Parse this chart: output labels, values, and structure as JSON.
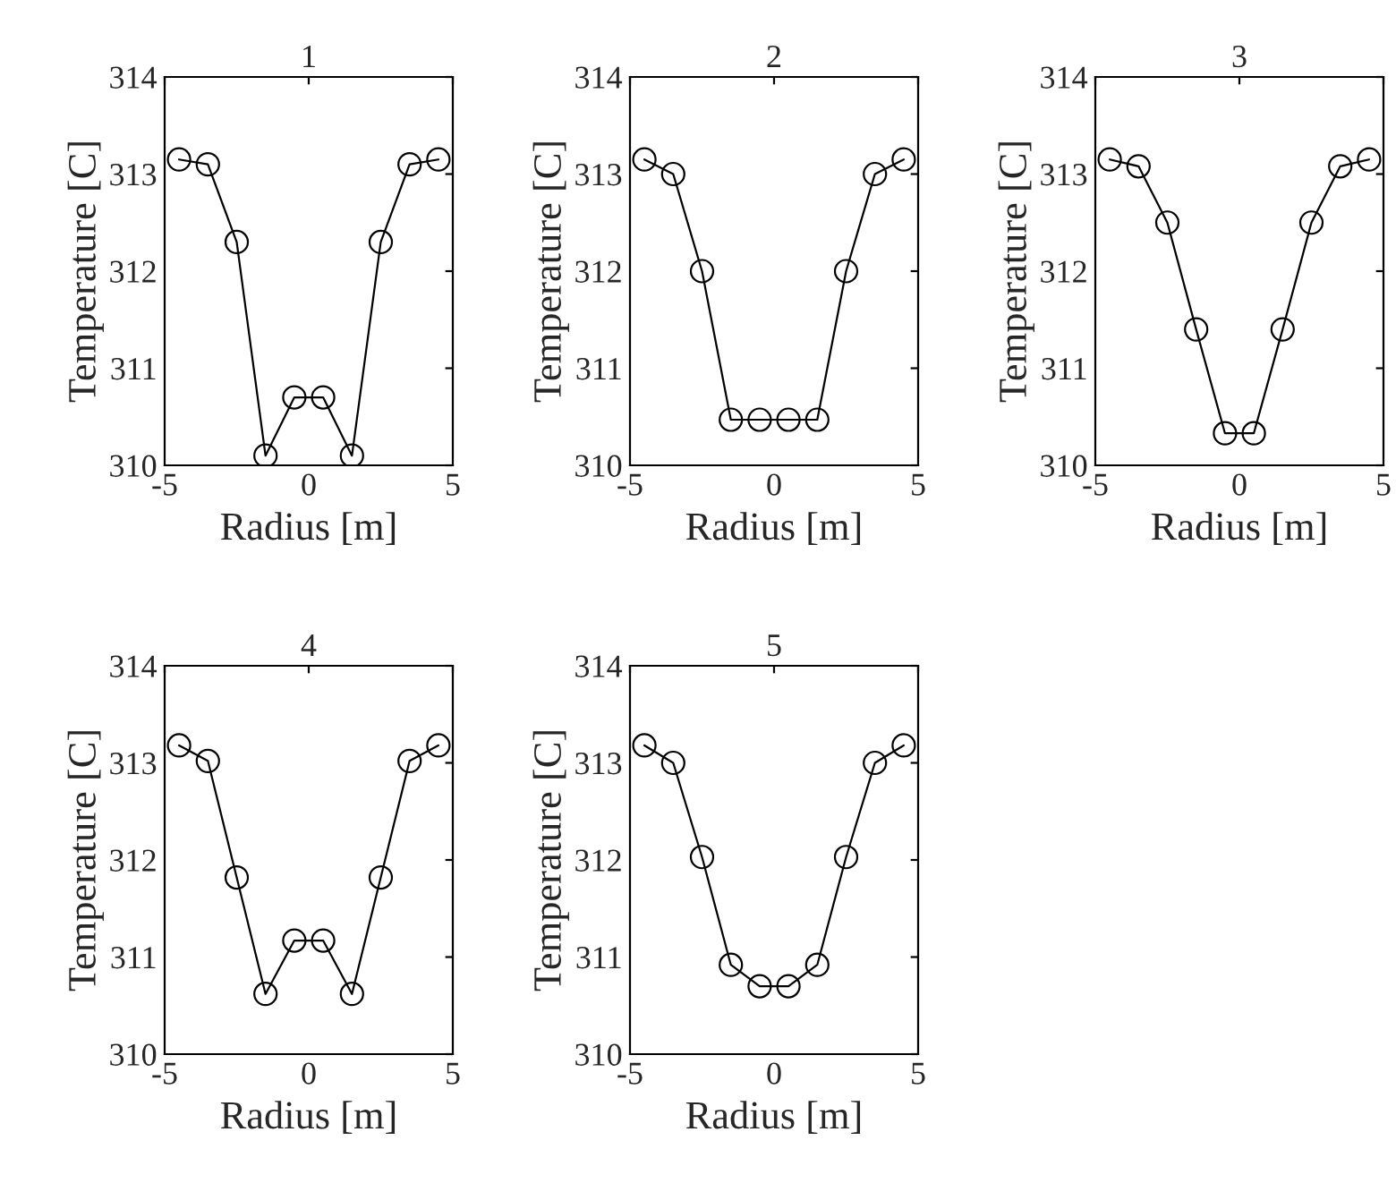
{
  "chart_data": [
    {
      "type": "line",
      "title": "1",
      "xlabel": "Radius [m]",
      "ylabel": "Temperature [C]",
      "x": [
        -4.5,
        -3.5,
        -2.5,
        -1.5,
        -0.5,
        0.5,
        1.5,
        2.5,
        3.5,
        4.5
      ],
      "series": [
        {
          "color": "#000000",
          "values": [
            313.15,
            313.1,
            312.3,
            310.1,
            310.7,
            310.7,
            310.1,
            312.3,
            313.1,
            313.15
          ]
        }
      ],
      "xlim": [
        -5,
        5
      ],
      "xticks": [
        -5,
        0,
        5
      ],
      "ylim": [
        310,
        314
      ],
      "yticks": [
        310,
        311,
        312,
        313,
        314
      ],
      "grid": false,
      "marker": "circle",
      "line_style": "solid"
    },
    {
      "type": "line",
      "title": "2",
      "xlabel": "Radius [m]",
      "ylabel": "Temperature [C]",
      "x": [
        -4.5,
        -3.5,
        -2.5,
        -1.5,
        -0.5,
        0.5,
        1.5,
        2.5,
        3.5,
        4.5
      ],
      "series": [
        {
          "color": "#000000",
          "values": [
            313.15,
            313.0,
            312.0,
            310.47,
            310.47,
            310.47,
            310.47,
            312.0,
            313.0,
            313.15
          ]
        }
      ],
      "xlim": [
        -5,
        5
      ],
      "xticks": [
        -5,
        0,
        5
      ],
      "ylim": [
        310,
        314
      ],
      "yticks": [
        310,
        311,
        312,
        313,
        314
      ],
      "grid": false,
      "marker": "circle",
      "line_style": "solid"
    },
    {
      "type": "line",
      "title": "3",
      "xlabel": "Radius [m]",
      "ylabel": "Temperature [C]",
      "x": [
        -4.5,
        -3.5,
        -2.5,
        -1.5,
        -0.5,
        0.5,
        1.5,
        2.5,
        3.5,
        4.5
      ],
      "series": [
        {
          "color": "#000000",
          "values": [
            313.15,
            313.08,
            312.5,
            311.4,
            310.33,
            310.33,
            311.4,
            312.5,
            313.08,
            313.15
          ]
        }
      ],
      "xlim": [
        -5,
        5
      ],
      "xticks": [
        -5,
        0,
        5
      ],
      "ylim": [
        310,
        314
      ],
      "yticks": [
        310,
        311,
        312,
        313,
        314
      ],
      "grid": false,
      "marker": "circle",
      "line_style": "solid"
    },
    {
      "type": "line",
      "title": "4",
      "xlabel": "Radius [m]",
      "ylabel": "Temperature [C]",
      "x": [
        -4.5,
        -3.5,
        -2.5,
        -1.5,
        -0.5,
        0.5,
        1.5,
        2.5,
        3.5,
        4.5
      ],
      "series": [
        {
          "color": "#000000",
          "values": [
            313.18,
            313.02,
            311.82,
            310.62,
            311.17,
            311.17,
            310.62,
            311.82,
            313.02,
            313.18
          ]
        }
      ],
      "xlim": [
        -5,
        5
      ],
      "xticks": [
        -5,
        0,
        5
      ],
      "ylim": [
        310,
        314
      ],
      "yticks": [
        310,
        311,
        312,
        313,
        314
      ],
      "grid": false,
      "marker": "circle",
      "line_style": "solid"
    },
    {
      "type": "line",
      "title": "5",
      "xlabel": "Radius [m]",
      "ylabel": "Temperature [C]",
      "x": [
        -4.5,
        -3.5,
        -2.5,
        -1.5,
        -0.5,
        0.5,
        1.5,
        2.5,
        3.5,
        4.5
      ],
      "series": [
        {
          "color": "#000000",
          "values": [
            313.18,
            313.0,
            312.03,
            310.92,
            310.7,
            310.7,
            310.92,
            312.03,
            313.0,
            313.18
          ]
        }
      ],
      "xlim": [
        -5,
        5
      ],
      "xticks": [
        -5,
        0,
        5
      ],
      "ylim": [
        310,
        314
      ],
      "yticks": [
        310,
        311,
        312,
        313,
        314
      ],
      "grid": false,
      "marker": "circle",
      "line_style": "solid"
    }
  ]
}
